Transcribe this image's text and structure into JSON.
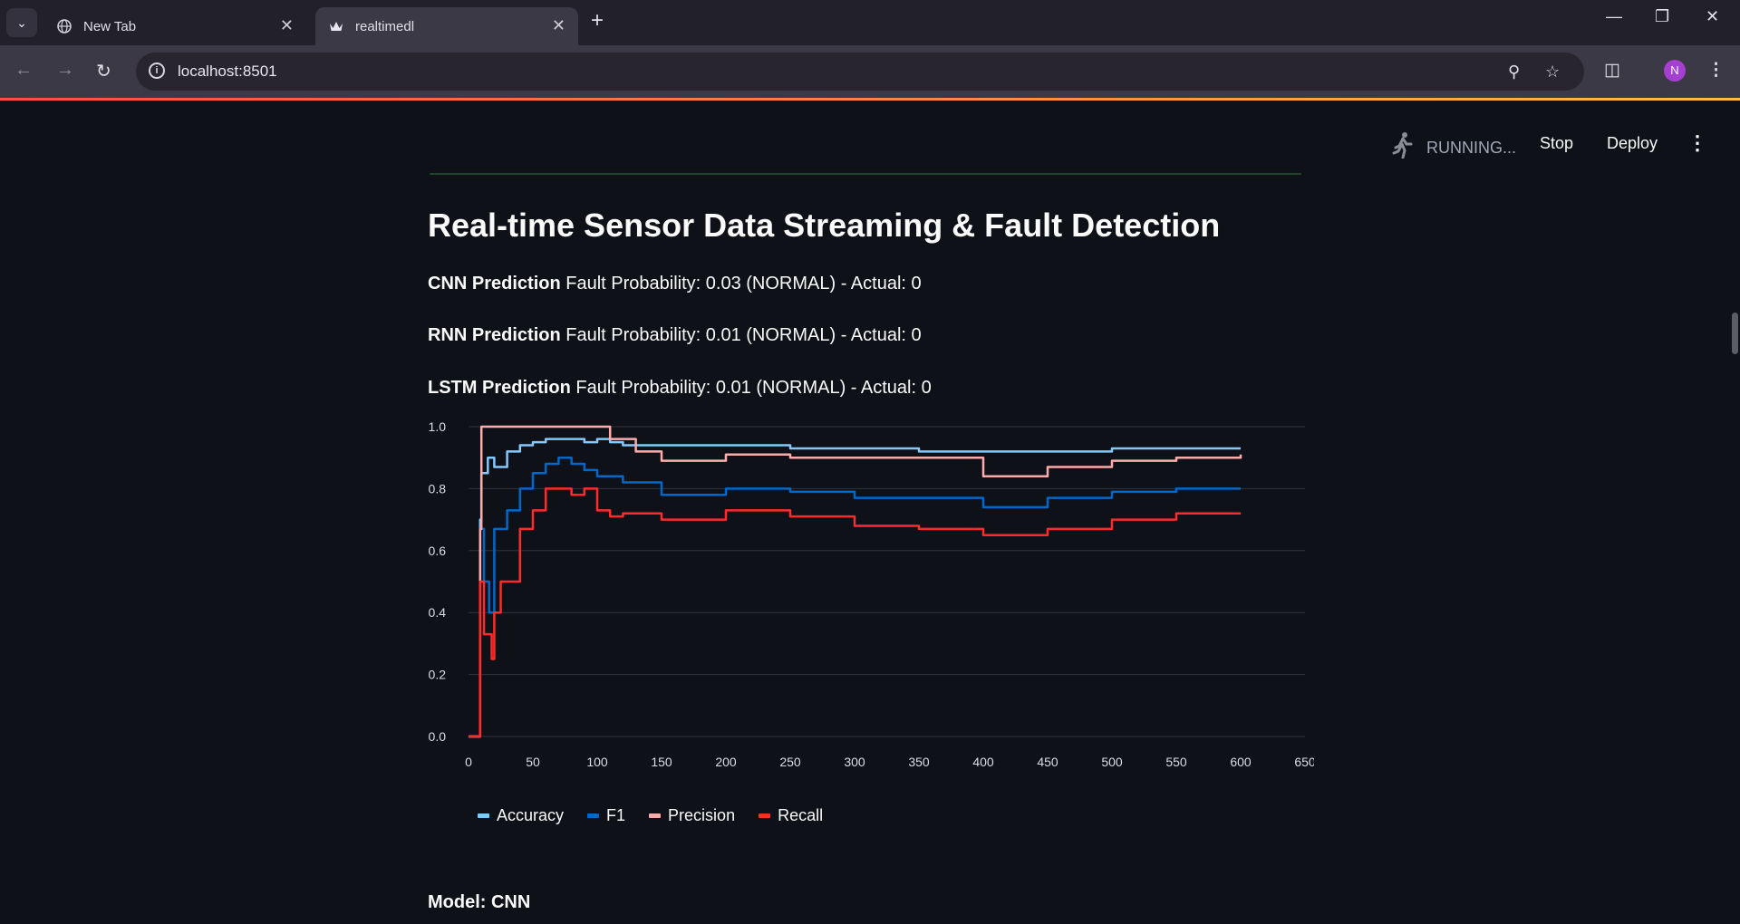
{
  "browser": {
    "tabs": [
      {
        "title": "New Tab",
        "icon": "globe-icon"
      },
      {
        "title": "realtimedl",
        "icon": "crown-icon"
      }
    ],
    "url": "localhost:8501",
    "profile_initial": "N"
  },
  "app_header": {
    "status": "RUNNING...",
    "stop_label": "Stop",
    "deploy_label": "Deploy"
  },
  "main": {
    "title": "Real-time Sensor Data Streaming & Fault Detection",
    "predictions": [
      {
        "label": "CNN Prediction",
        "text": "Fault Probability: 0.03 (NORMAL) - Actual: 0"
      },
      {
        "label": "RNN Prediction",
        "text": "Fault Probability: 0.01 (NORMAL) - Actual: 0"
      },
      {
        "label": "LSTM Prediction",
        "text": "Fault Probability: 0.01 (NORMAL) - Actual: 0"
      }
    ],
    "model_label": "Model: CNN"
  },
  "chart_data": {
    "type": "line",
    "xlim": [
      0,
      650
    ],
    "ylim": [
      0,
      1
    ],
    "xticks": [
      "0",
      "50",
      "100",
      "150",
      "200",
      "250",
      "300",
      "350",
      "400",
      "450",
      "500",
      "550",
      "600",
      "650"
    ],
    "yticks": [
      "0.0",
      "0.2",
      "0.4",
      "0.6",
      "0.8",
      "1.0"
    ],
    "grid": "horizontal",
    "legend_position": "bottom-left",
    "series": [
      {
        "name": "Accuracy",
        "color": "#83c9ff",
        "x": [
          0,
          8,
          9,
          10,
          15,
          20,
          30,
          40,
          50,
          60,
          70,
          80,
          90,
          100,
          110,
          120,
          150,
          200,
          250,
          300,
          350,
          400,
          450,
          500,
          550,
          600
        ],
        "y": [
          0,
          0,
          0.7,
          0.85,
          0.9,
          0.87,
          0.92,
          0.94,
          0.95,
          0.96,
          0.96,
          0.96,
          0.95,
          0.96,
          0.95,
          0.94,
          0.94,
          0.94,
          0.93,
          0.93,
          0.92,
          0.92,
          0.92,
          0.93,
          0.93,
          0.93
        ]
      },
      {
        "name": "F1",
        "color": "#0068c9",
        "x": [
          0,
          8,
          9,
          12,
          16,
          20,
          25,
          30,
          40,
          50,
          60,
          70,
          80,
          90,
          100,
          110,
          120,
          150,
          200,
          250,
          300,
          350,
          400,
          450,
          500,
          550,
          600
        ],
        "y": [
          0,
          0,
          0.67,
          0.5,
          0.4,
          0.67,
          0.67,
          0.73,
          0.8,
          0.85,
          0.88,
          0.9,
          0.88,
          0.86,
          0.84,
          0.84,
          0.82,
          0.78,
          0.8,
          0.79,
          0.77,
          0.77,
          0.74,
          0.77,
          0.79,
          0.8,
          0.8
        ]
      },
      {
        "name": "Precision",
        "color": "#ffabab",
        "x": [
          0,
          8,
          9,
          10,
          60,
          100,
          109,
          110,
          130,
          150,
          200,
          250,
          300,
          350,
          380,
          400,
          450,
          500,
          550,
          600
        ],
        "y": [
          0,
          0,
          0.67,
          1.0,
          1.0,
          1.0,
          1.0,
          0.96,
          0.92,
          0.89,
          0.91,
          0.9,
          0.9,
          0.9,
          0.9,
          0.84,
          0.87,
          0.89,
          0.9,
          0.91
        ]
      },
      {
        "name": "Recall",
        "color": "#ff2b2b",
        "x": [
          0,
          8,
          9,
          12,
          15,
          18,
          20,
          25,
          30,
          40,
          50,
          60,
          70,
          80,
          90,
          100,
          110,
          120,
          150,
          200,
          250,
          300,
          350,
          400,
          450,
          500,
          550,
          600
        ],
        "y": [
          0,
          0,
          0.5,
          0.33,
          0.33,
          0.25,
          0.4,
          0.5,
          0.5,
          0.67,
          0.73,
          0.8,
          0.8,
          0.78,
          0.8,
          0.73,
          0.71,
          0.72,
          0.7,
          0.73,
          0.71,
          0.68,
          0.67,
          0.65,
          0.67,
          0.7,
          0.72,
          0.72
        ]
      }
    ]
  }
}
